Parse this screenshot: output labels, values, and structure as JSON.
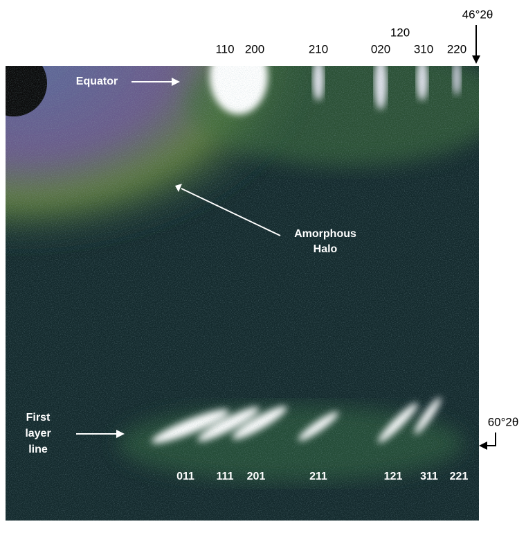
{
  "top_reflections": [
    "110",
    "200",
    "210",
    "020",
    "120",
    "310",
    "220"
  ],
  "scale_top": "46°2θ",
  "scale_bottom": "60°2θ",
  "annotations": {
    "equator": "Equator",
    "amorphous_halo": [
      "Amorphous",
      "Halo"
    ],
    "first_layer_line": [
      "First",
      "layer",
      "line"
    ]
  },
  "layer_line_reflections": [
    "011",
    "111",
    "201",
    "211",
    "121",
    "311",
    "221"
  ]
}
